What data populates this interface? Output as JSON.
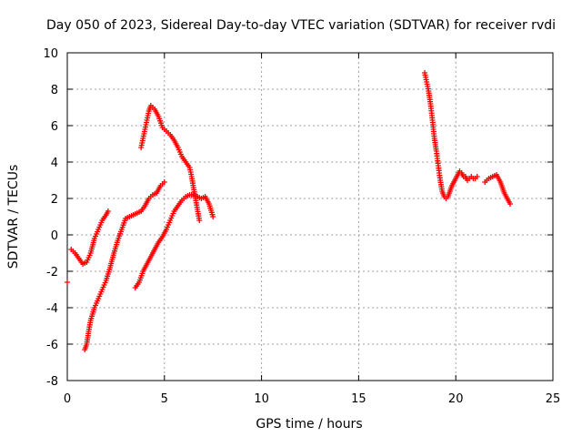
{
  "chart_data": {
    "type": "scatter",
    "title": "Day 050 of 2023, Sidereal Day-to-day VTEC variation (SDTVAR) for receiver rvdi",
    "xlabel": "GPS time / hours",
    "ylabel": "SDTVAR / TECUs",
    "xlim": [
      0,
      25
    ],
    "ylim": [
      -8,
      10
    ],
    "xticks": [
      0,
      5,
      10,
      15,
      20,
      25
    ],
    "xtick_labels": [
      "0",
      "5",
      "10",
      "15",
      "20",
      "25"
    ],
    "yticks": [
      -8,
      -6,
      -4,
      -2,
      0,
      2,
      4,
      6,
      8,
      10
    ],
    "ytick_labels": [
      "-8",
      "-6",
      "-4",
      "-2",
      "0",
      "2",
      "4",
      "6",
      "8",
      "10"
    ],
    "grid": true,
    "marker": "plus",
    "color": "#ff0000",
    "series": [
      {
        "x": [
          0.0
        ],
        "y": [
          -2.6
        ]
      },
      {
        "x": [
          0.2,
          0.4,
          0.6,
          0.8,
          1.0,
          1.2,
          1.4,
          1.6,
          1.8,
          2.0,
          2.1
        ],
        "y": [
          -0.8,
          -1.0,
          -1.3,
          -1.6,
          -1.5,
          -1.0,
          -0.2,
          0.3,
          0.8,
          1.1,
          1.3
        ]
      },
      {
        "x": [
          0.9,
          1.0,
          1.1,
          1.2,
          1.4,
          1.6,
          1.8,
          2.0,
          2.2,
          2.4,
          2.6,
          2.8,
          3.0,
          3.2,
          3.4,
          3.6,
          3.8,
          4.0,
          4.2,
          4.4,
          4.6,
          4.8,
          5.0
        ],
        "y": [
          -6.3,
          -6.0,
          -5.3,
          -4.7,
          -4.0,
          -3.5,
          -3.0,
          -2.5,
          -1.8,
          -1.0,
          -0.3,
          0.3,
          0.9,
          1.0,
          1.1,
          1.2,
          1.3,
          1.6,
          2.0,
          2.2,
          2.3,
          2.7,
          2.9
        ]
      },
      {
        "x": [
          3.5,
          3.7,
          3.9,
          4.1,
          4.3,
          4.5,
          4.7,
          4.9,
          5.1,
          5.3,
          5.5,
          5.7,
          5.9,
          6.1,
          6.3,
          6.5,
          6.7,
          6.9,
          7.1,
          7.3,
          7.5
        ],
        "y": [
          -2.9,
          -2.6,
          -2.0,
          -1.6,
          -1.2,
          -0.8,
          -0.4,
          -0.1,
          0.3,
          0.8,
          1.3,
          1.6,
          1.9,
          2.1,
          2.2,
          2.2,
          2.1,
          2.0,
          2.1,
          1.7,
          1.0
        ]
      },
      {
        "x": [
          3.8,
          3.9,
          4.0,
          4.1,
          4.2,
          4.3,
          4.5,
          4.7,
          4.9,
          5.1,
          5.3,
          5.5,
          5.7,
          5.9,
          6.1,
          6.3,
          6.4,
          6.5,
          6.6,
          6.7,
          6.8
        ],
        "y": [
          4.8,
          5.3,
          5.8,
          6.3,
          6.8,
          7.1,
          6.9,
          6.5,
          5.9,
          5.7,
          5.5,
          5.2,
          4.8,
          4.3,
          4.0,
          3.7,
          3.2,
          2.6,
          2.0,
          1.4,
          0.8
        ]
      },
      {
        "x": [
          18.4,
          18.5,
          18.6,
          18.7,
          18.8,
          18.9,
          19.0,
          19.1,
          19.2,
          19.3,
          19.4,
          19.5,
          19.6,
          19.7,
          19.8,
          19.9,
          20.0,
          20.1,
          20.2,
          20.3,
          20.4,
          20.5,
          20.6,
          20.7,
          20.8,
          20.9,
          21.0,
          21.1
        ],
        "y": [
          8.9,
          8.4,
          7.9,
          7.2,
          6.3,
          5.3,
          4.6,
          3.8,
          3.0,
          2.4,
          2.1,
          2.0,
          2.1,
          2.4,
          2.7,
          2.9,
          3.1,
          3.3,
          3.5,
          3.4,
          3.2,
          3.2,
          3.0,
          3.1,
          3.2,
          3.1,
          3.1,
          3.2
        ]
      },
      {
        "x": [
          21.5,
          21.7,
          21.9,
          22.1,
          22.2,
          22.3,
          22.4,
          22.5,
          22.6,
          22.7,
          22.8
        ],
        "y": [
          2.9,
          3.1,
          3.2,
          3.3,
          3.1,
          2.9,
          2.6,
          2.3,
          2.1,
          1.9,
          1.7
        ]
      }
    ]
  }
}
